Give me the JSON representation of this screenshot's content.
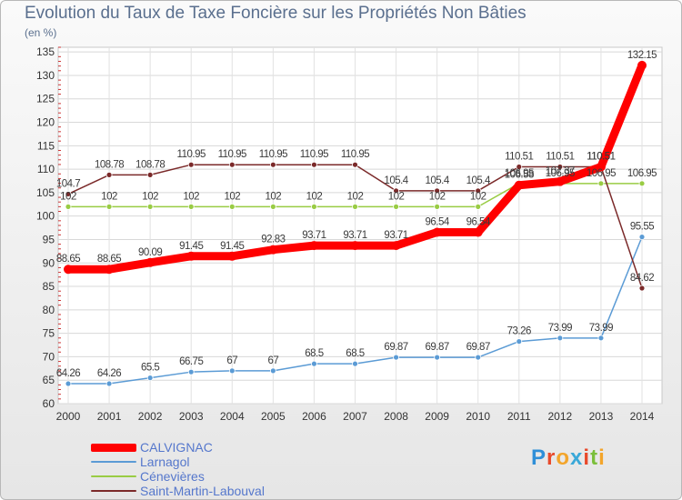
{
  "title": "Evolution du Taux de Taxe Foncière sur les Propriétés Non Bâties",
  "subtitle": "(en %)",
  "brand": "Proxiti",
  "chart_data": {
    "type": "line",
    "x": [
      "2000",
      "2001",
      "2002",
      "2003",
      "2004",
      "2005",
      "2006",
      "2007",
      "2008",
      "2009",
      "2010",
      "2011",
      "2012",
      "2013",
      "2014"
    ],
    "ylim": [
      60,
      136
    ],
    "yticks": [
      60,
      65,
      70,
      75,
      80,
      85,
      90,
      95,
      100,
      105,
      110,
      115,
      120,
      125,
      130,
      135
    ],
    "grid": true,
    "legend_position": "bottom-left",
    "series": [
      {
        "name": "CALVIGNAC",
        "color": "#ff0000",
        "width": 9,
        "values": [
          88.65,
          88.65,
          90.09,
          91.45,
          91.45,
          92.83,
          93.71,
          93.71,
          93.71,
          96.54,
          96.54,
          106.58,
          107.37,
          110.51,
          132.15
        ],
        "labels": [
          "88.65",
          "88.65",
          "90.09",
          "91.45",
          "91.45",
          "92.83",
          "93.71",
          "93.71",
          "93.71",
          "96.54",
          "96.54",
          "106.58",
          "107.37",
          "110.51",
          "132.15"
        ]
      },
      {
        "name": "Larnagol",
        "color": "#5b9bd5",
        "width": 1.5,
        "values": [
          64.26,
          64.26,
          65.5,
          66.75,
          67,
          67,
          68.5,
          68.5,
          69.87,
          69.87,
          69.87,
          73.26,
          73.99,
          73.99,
          95.55
        ],
        "labels": [
          "64.26",
          "64.26",
          "65.5",
          "66.75",
          "67",
          "67",
          "68.5",
          "68.5",
          "69.87",
          "69.87",
          "69.87",
          "73.26",
          "73.99",
          "73.99",
          "95.55"
        ]
      },
      {
        "name": "Cénevières",
        "color": "#99cc44",
        "width": 1.5,
        "values": [
          102,
          102,
          102,
          102,
          102,
          102,
          102,
          102,
          102,
          102,
          102,
          106.95,
          106.95,
          106.95,
          106.95
        ],
        "labels": [
          "102",
          "102",
          "102",
          "102",
          "102",
          "102",
          "102",
          "102",
          "102",
          "102",
          "102",
          "106.95",
          "106.95",
          "106.95",
          "106.95"
        ]
      },
      {
        "name": "Saint-Martin-Labouval",
        "color": "#7b2a2a",
        "width": 1.5,
        "values": [
          104.7,
          108.78,
          108.78,
          110.95,
          110.95,
          110.95,
          110.95,
          110.95,
          105.4,
          105.4,
          105.4,
          110.51,
          110.51,
          110.51,
          84.62
        ],
        "labels": [
          "104.7",
          "108.78",
          "108.78",
          "110.95",
          "110.95",
          "110.95",
          "110.95",
          "110.95",
          "105.4",
          "105.4",
          "105.4",
          "110.51",
          "110.51",
          "110.51",
          "84.62"
        ]
      }
    ]
  }
}
